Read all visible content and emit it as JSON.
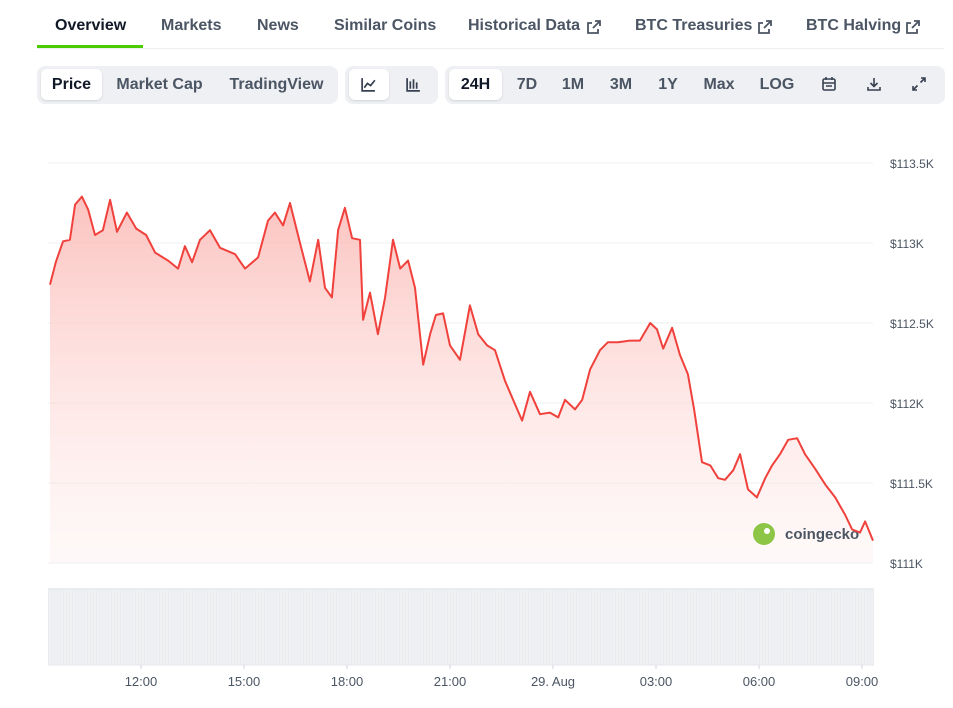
{
  "tabs": [
    "Overview",
    "Markets",
    "News",
    "Similar Coins",
    "Historical Data",
    "BTC Treasuries",
    "BTC Halving"
  ],
  "chart_type_buttons": [
    "Price",
    "Market Cap",
    "TradingView"
  ],
  "range_buttons": [
    "24H",
    "7D",
    "1M",
    "3M",
    "1Y",
    "Max",
    "LOG"
  ],
  "chart_data": {
    "type": "line",
    "watermark": "coingecko",
    "x": [
      9.35,
      9.52,
      9.73,
      9.93,
      10.08,
      10.28,
      10.46,
      10.66,
      10.89,
      11.1,
      11.3,
      11.59,
      11.86,
      12.15,
      12.41,
      12.79,
      13.08,
      13.28,
      13.49,
      13.72,
      14.01,
      14.3,
      14.74,
      15.03,
      15.41,
      15.7,
      15.9,
      16.14,
      16.34,
      16.63,
      16.92,
      17.16,
      17.36,
      17.56,
      17.74,
      17.94,
      18.15,
      18.38,
      18.47,
      18.67,
      18.9,
      19.11,
      19.34,
      19.55,
      19.78,
      19.98,
      20.22,
      20.42,
      20.59,
      20.8,
      21.0,
      21.29,
      21.58,
      21.82,
      22.08,
      22.31,
      22.6,
      22.9,
      23.1,
      23.33,
      23.62,
      23.91,
      24.15,
      24.35,
      24.64,
      24.85,
      25.08,
      25.37,
      25.6,
      25.9,
      26.24,
      26.53,
      26.83,
      27.03,
      27.21,
      27.47,
      27.7,
      27.93,
      28.11,
      28.34,
      28.58,
      28.81,
      29.01,
      29.25,
      29.45,
      29.68,
      29.94,
      30.18,
      30.38,
      30.61,
      30.85,
      31.11,
      31.34,
      31.63,
      31.93,
      32.22,
      32.51,
      32.71,
      32.94,
      33.09,
      33.32
    ],
    "series": [
      {
        "name": "Price",
        "color": "#f0413c",
        "values": [
          112740,
          112880,
          113010,
          113020,
          113240,
          113290,
          113210,
          113050,
          113080,
          113270,
          113070,
          113190,
          113090,
          113050,
          112940,
          112890,
          112840,
          112980,
          112880,
          113020,
          113080,
          112970,
          112930,
          112840,
          112910,
          113140,
          113190,
          113110,
          113250,
          113000,
          112760,
          113020,
          112720,
          112660,
          113080,
          113220,
          113030,
          113020,
          112520,
          112690,
          112430,
          112660,
          113020,
          112840,
          112890,
          112720,
          112240,
          112430,
          112550,
          112560,
          112360,
          112270,
          112610,
          112430,
          112360,
          112330,
          112140,
          111990,
          111890,
          112070,
          111930,
          111940,
          111910,
          112020,
          111960,
          112020,
          112210,
          112330,
          112380,
          112380,
          112390,
          112390,
          112500,
          112460,
          112340,
          112470,
          112300,
          112180,
          111960,
          111630,
          111610,
          111530,
          111520,
          111580,
          111680,
          111460,
          111410,
          111530,
          111610,
          111680,
          111770,
          111780,
          111680,
          111590,
          111490,
          111410,
          111300,
          111210,
          111190,
          111260,
          111140
        ]
      }
    ],
    "xlim": [
      9.35,
      33.32
    ],
    "ylim": [
      111000,
      113500
    ],
    "xticks": [
      {
        "value": 12,
        "label": "12:00"
      },
      {
        "value": 15,
        "label": "15:00"
      },
      {
        "value": 18,
        "label": "18:00"
      },
      {
        "value": 21,
        "label": "21:00"
      },
      {
        "value": 24,
        "label": "29. Aug"
      },
      {
        "value": 27,
        "label": "03:00"
      },
      {
        "value": 30,
        "label": "06:00"
      },
      {
        "value": 33,
        "label": "09:00"
      }
    ],
    "yticks": [
      {
        "value": 111000,
        "label": "$111K"
      },
      {
        "value": 111500,
        "label": "$111.5K"
      },
      {
        "value": 112000,
        "label": "$112K"
      },
      {
        "value": 112500,
        "label": "$112.5K"
      },
      {
        "value": 113000,
        "label": "$113K"
      },
      {
        "value": 113500,
        "label": "$113.5K"
      }
    ],
    "grid": true
  }
}
